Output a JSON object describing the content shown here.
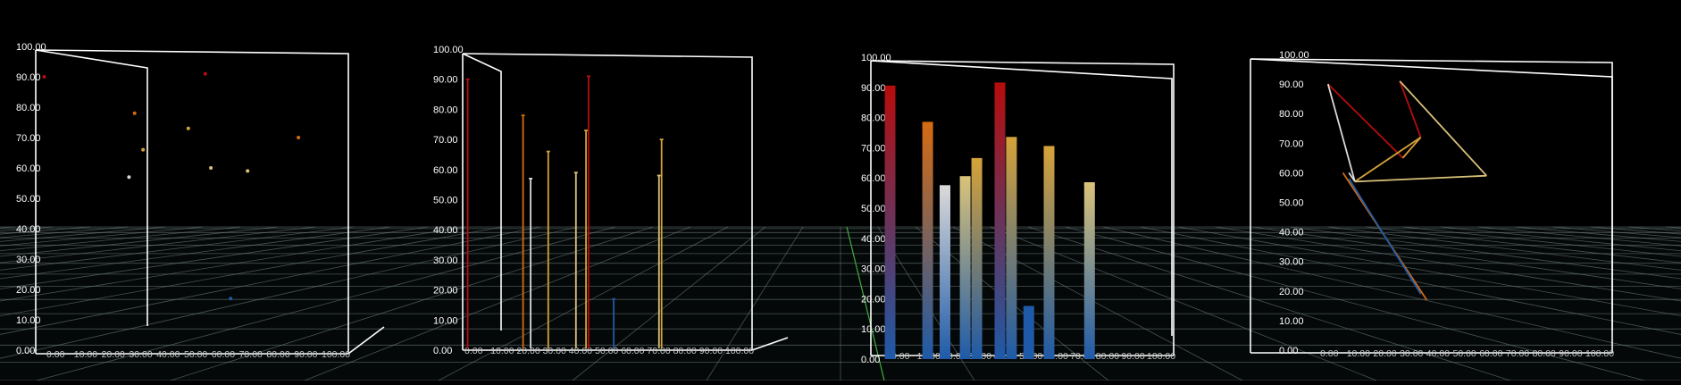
{
  "colors": {
    "background": "#000000",
    "frame": "#ffffff",
    "floor_grid": "#7f8f8f",
    "floor_axis": "#3fae3f",
    "tick_label": "#c8c8c8",
    "palette_high": "#b50d0d",
    "palette_orange": "#d46b12",
    "palette_gold": "#d4a23a",
    "palette_tan": "#d8c27a",
    "palette_pale": "#d9d9d9",
    "palette_blue": "#1e5aa8"
  },
  "chart_data": [
    {
      "type": "scatter",
      "panel": "scatter-3d",
      "title": "",
      "xlabel": "",
      "ylabel": "",
      "ylim": [
        0,
        100
      ],
      "xlim": [
        0,
        100
      ],
      "grid": true,
      "legend": "none",
      "y_ticks": [
        "0.00",
        "10.00",
        "20.00",
        "30.00",
        "40.00",
        "50.00",
        "60.00",
        "70.00",
        "80.00",
        "90.00",
        "100.00"
      ],
      "x_ticks": [
        "0.00",
        "10.00",
        "20.00",
        "30.00",
        "40.00",
        "50.00",
        "60.00",
        "70.00",
        "80.00",
        "90.00",
        "100.00"
      ],
      "points": [
        {
          "x": 3,
          "y": 90,
          "color": "#b50d0d"
        },
        {
          "x": 35,
          "y": 78,
          "color": "#d46b12"
        },
        {
          "x": 38,
          "y": 66,
          "color": "#d4a23a"
        },
        {
          "x": 33,
          "y": 57,
          "color": "#d9d9d9"
        },
        {
          "x": 60,
          "y": 91,
          "color": "#b50d0d"
        },
        {
          "x": 54,
          "y": 73,
          "color": "#d4a23a"
        },
        {
          "x": 62,
          "y": 60,
          "color": "#d8c27a"
        },
        {
          "x": 75,
          "y": 59,
          "color": "#d8c27a"
        },
        {
          "x": 93,
          "y": 70,
          "color": "#d46b12"
        },
        {
          "x": 69,
          "y": 17,
          "color": "#1e5aa8"
        }
      ]
    },
    {
      "type": "bar",
      "panel": "needle-3d",
      "title": "",
      "xlabel": "",
      "ylabel": "",
      "ylim": [
        0,
        100
      ],
      "xlim": [
        0,
        100
      ],
      "grid": true,
      "legend": "none",
      "y_ticks": [
        "0.00",
        "10.00",
        "20.00",
        "30.00",
        "40.00",
        "50.00",
        "60.00",
        "70.00",
        "80.00",
        "90.00",
        "100.00"
      ],
      "x_ticks": [
        "0.00",
        "10.00",
        "20.00",
        "30.00",
        "40.00",
        "50.00",
        "60.00",
        "70.00",
        "80.00",
        "90.00",
        "100.00"
      ],
      "bars": [
        {
          "x": 2,
          "y": 90,
          "color": "#b50d0d"
        },
        {
          "x": 24,
          "y": 78,
          "color": "#d46b12"
        },
        {
          "x": 27,
          "y": 57,
          "color": "#d9d9d9"
        },
        {
          "x": 34,
          "y": 66,
          "color": "#d4a23a"
        },
        {
          "x": 45,
          "y": 59,
          "color": "#d8c27a"
        },
        {
          "x": 49,
          "y": 73,
          "color": "#d4a23a"
        },
        {
          "x": 50,
          "y": 91,
          "color": "#b50d0d"
        },
        {
          "x": 60,
          "y": 17,
          "color": "#1e5aa8"
        },
        {
          "x": 78,
          "y": 58,
          "color": "#d8c27a"
        },
        {
          "x": 79,
          "y": 70,
          "color": "#d4a23a"
        }
      ]
    },
    {
      "type": "bar",
      "panel": "gradient-bar-3d",
      "title": "",
      "xlabel": "",
      "ylabel": "",
      "ylim": [
        0,
        100
      ],
      "xlim": [
        0,
        100
      ],
      "grid": true,
      "legend": "none",
      "y_ticks": [
        "0.00",
        "10.00",
        "20.00",
        "30.00",
        "40.00",
        "50.00",
        "60.00",
        "70.00",
        "80.00",
        "90.00",
        "100.00"
      ],
      "x_ticks": [
        "0.00",
        "10.00",
        "20.00",
        "30.00",
        "40.00",
        "50.00",
        "60.00",
        "70.00",
        "80.00",
        "90.00",
        "100.00"
      ],
      "bars": [
        {
          "x": 2,
          "y": 90,
          "color": "#b50d0d"
        },
        {
          "x": 15,
          "y": 78,
          "color": "#d46b12"
        },
        {
          "x": 21,
          "y": 57,
          "color": "#d9d9d9"
        },
        {
          "x": 28,
          "y": 60,
          "color": "#d8c27a"
        },
        {
          "x": 32,
          "y": 66,
          "color": "#d4a23a"
        },
        {
          "x": 40,
          "y": 91,
          "color": "#b50d0d"
        },
        {
          "x": 44,
          "y": 73,
          "color": "#d4a23a"
        },
        {
          "x": 50,
          "y": 17,
          "color": "#1e5aa8"
        },
        {
          "x": 57,
          "y": 70,
          "color": "#d4a23a"
        },
        {
          "x": 71,
          "y": 58,
          "color": "#d8c27a"
        }
      ]
    },
    {
      "type": "line",
      "panel": "line-3d",
      "title": "",
      "xlabel": "",
      "ylabel": "",
      "ylim": [
        0,
        100
      ],
      "xlim": [
        0,
        100
      ],
      "grid": true,
      "legend": "none",
      "y_ticks": [
        "0.00",
        "10.00",
        "20.00",
        "30.00",
        "40.00",
        "50.00",
        "60.00",
        "70.00",
        "80.00",
        "90.00",
        "100.00"
      ],
      "x_ticks": [
        "0.00",
        "10.00",
        "20.00",
        "30.00",
        "40.00",
        "50.00",
        "60.00",
        "70.00",
        "80.00",
        "90.00",
        "100.00"
      ],
      "segments": [
        {
          "x1": 5,
          "y1": 90,
          "x2": 30,
          "y2": 65,
          "color": "#b50d0d"
        },
        {
          "x1": 29,
          "y1": 91,
          "x2": 36,
          "y2": 72,
          "color": "#b50d0d"
        },
        {
          "x1": 36,
          "y1": 72,
          "x2": 30,
          "y2": 65,
          "color": "#b50d0d"
        },
        {
          "x1": 30,
          "y1": 65,
          "x2": 36,
          "y2": 72,
          "color": "#d4a23a"
        },
        {
          "x1": 36,
          "y1": 72,
          "x2": 14,
          "y2": 57,
          "color": "#d4a23a"
        },
        {
          "x1": 14,
          "y1": 57,
          "x2": 58,
          "y2": 59,
          "color": "#d8c27a"
        },
        {
          "x1": 58,
          "y1": 59,
          "x2": 29,
          "y2": 91,
          "color": "#d8c27a"
        },
        {
          "x1": 5,
          "y1": 90,
          "x2": 14,
          "y2": 57,
          "color": "#d9d9d9"
        },
        {
          "x1": 14,
          "y1": 57,
          "x2": 12,
          "y2": 60,
          "color": "#d9d9d9"
        },
        {
          "x1": 10,
          "y1": 60,
          "x2": 38,
          "y2": 17,
          "color": "#d46b12"
        },
        {
          "x1": 12,
          "y1": 58,
          "x2": 36,
          "y2": 19,
          "color": "#1e5aa8"
        }
      ]
    }
  ]
}
